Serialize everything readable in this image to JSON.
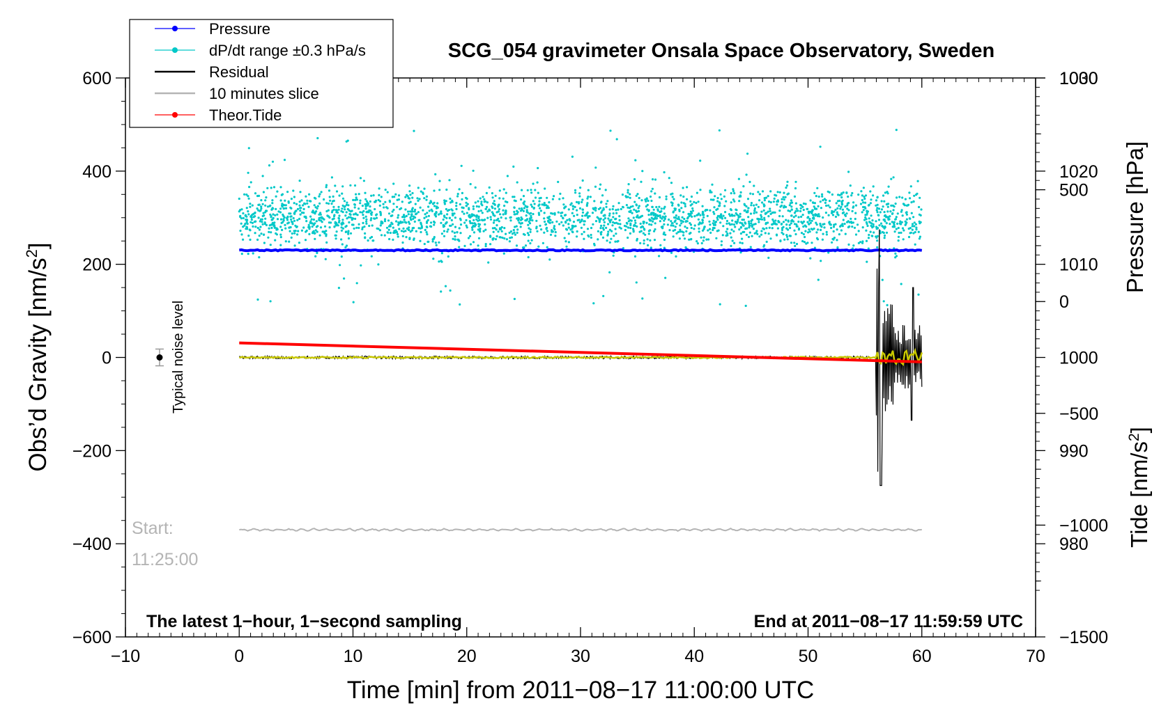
{
  "chart_data": {
    "type": "line",
    "title": "SCG_054 gravimeter Onsala Space Observatory, Sweden",
    "xlabel": "Time [min] from 2011−08−17 11:00:00 UTC",
    "xlim": [
      -10,
      70
    ],
    "xticks": [
      -10,
      0,
      10,
      20,
      30,
      40,
      50,
      60,
      70
    ],
    "xtick_labels": [
      "−10",
      "0",
      "10",
      "20",
      "30",
      "40",
      "50",
      "60",
      "70"
    ],
    "y_left": {
      "label": "Obs’d Gravity [nm/s2]",
      "label_main": "Obs’d Gravity [nm/s",
      "label_sup": "2",
      "label_close": "]",
      "lim": [
        -600,
        600
      ],
      "ticks": [
        -600,
        -400,
        -200,
        0,
        200,
        400,
        600
      ],
      "tick_labels": [
        "−600",
        "−400",
        "−200",
        "0",
        "200",
        "400",
        "600"
      ]
    },
    "y_right_pressure": {
      "label": "Pressure [hPa]",
      "lim": [
        970,
        1030
      ],
      "ticks": [
        980,
        990,
        1000,
        1010,
        1020,
        1030
      ],
      "tick_labels": [
        "980",
        "990",
        "1000",
        "1010",
        "1020",
        "1030"
      ]
    },
    "y_right_tide": {
      "label": "Tide [nm/s2]",
      "label_main": "Tide [nm/s",
      "label_sup": "2",
      "label_close": "]",
      "lim": [
        -1500,
        1000
      ],
      "ticks": [
        -1500,
        -1000,
        -500,
        0,
        500,
        1000
      ],
      "tick_labels": [
        "−1500",
        "−1000",
        "−500",
        "0",
        "500",
        "1000"
      ]
    },
    "legend": {
      "placement": "top-left",
      "entries": [
        {
          "label": "Pressure",
          "color": "#0000ff",
          "marker": true
        },
        {
          "label": "dP/dt range ±0.3 hPa/s",
          "color": "#00c8c8",
          "marker": true
        },
        {
          "label": "Residual",
          "color": "#000000",
          "marker": false
        },
        {
          "label": "10 minutes slice",
          "color": "#b4b4b4",
          "marker": false
        },
        {
          "label": "Theor.Tide",
          "color": "#ff0000",
          "marker": true
        }
      ]
    },
    "series": [
      {
        "name": "Pressure",
        "axis": "pressure",
        "color": "#0000ff",
        "x": [
          0,
          60
        ],
        "values": [
          1011.5,
          1011.5
        ]
      },
      {
        "name": "dP/dt range ±0.3 hPa/s",
        "axis": "gravity",
        "color": "#00c8c8",
        "x_range": [
          0,
          60
        ],
        "center": 300,
        "spread": 60,
        "count": 2600
      },
      {
        "name": "Residual",
        "axis": "gravity",
        "color": "#000000",
        "x_range": [
          0,
          60
        ],
        "baseline": 0,
        "quake_start": 56,
        "quake_min": -275,
        "quake_max": 275
      },
      {
        "name": "Filtered residual",
        "axis": "gravity",
        "color": "#c8c800",
        "x_range": [
          0,
          60
        ],
        "baseline": 0
      },
      {
        "name": "10 minutes slice",
        "axis": "gravity",
        "color": "#b4b4b4",
        "x": [
          0,
          60
        ],
        "values": [
          -370,
          -370
        ]
      },
      {
        "name": "Theor.Tide",
        "axis": "tide",
        "color": "#ff0000",
        "x": [
          0,
          60
        ],
        "values": [
          -185,
          -270
        ]
      }
    ],
    "annotations": {
      "noise_label": "Typical noise level",
      "noise_x": -7,
      "noise_y": 0,
      "noise_err": 18,
      "start_label": "Start:",
      "start_time": "11:25:00",
      "footer_left": "The latest 1−hour, 1−second sampling",
      "footer_right": "End at 2011−08−17 11:59:59 UTC"
    }
  }
}
